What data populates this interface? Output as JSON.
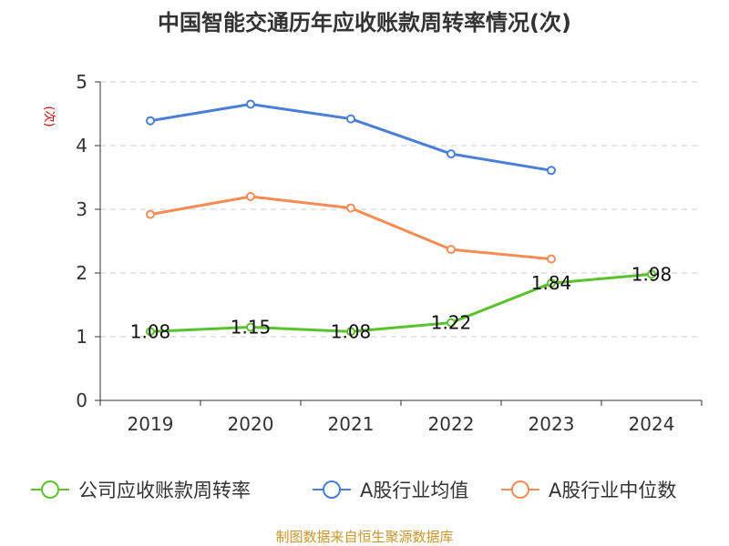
{
  "chart_data": {
    "type": "line",
    "title": "中国智能交通历年应收账款周转率情况(次)",
    "ylabel": "(次)",
    "xlabel": "",
    "categories": [
      "2019",
      "2020",
      "2021",
      "2022",
      "2023",
      "2024"
    ],
    "ylim": [
      0,
      5
    ],
    "yticks": [
      "0",
      "1",
      "2",
      "3",
      "4",
      "5"
    ],
    "grid": true,
    "legend_position": "bottom",
    "series": [
      {
        "name": "公司应收账款周转率",
        "color": "#5cc12e",
        "values": [
          1.08,
          1.15,
          1.08,
          1.22,
          1.84,
          1.98
        ],
        "labels": [
          "1.08",
          "1.15",
          "1.08",
          "1.22",
          "1.84",
          "1.98"
        ]
      },
      {
        "name": "A股行业均值",
        "color": "#4a7fd8",
        "values": [
          4.39,
          4.65,
          4.42,
          3.87,
          3.61,
          null
        ]
      },
      {
        "name": "A股行业中位数",
        "color": "#f58c56",
        "values": [
          2.92,
          3.2,
          3.02,
          2.37,
          2.22,
          null
        ]
      }
    ],
    "source": "制图数据来自恒生聚源数据库",
    "colors": {
      "title": "#333333",
      "ylabel": "#cc0000",
      "source": "#c8962e",
      "grid": "#cccccc",
      "axis": "#333333"
    }
  }
}
